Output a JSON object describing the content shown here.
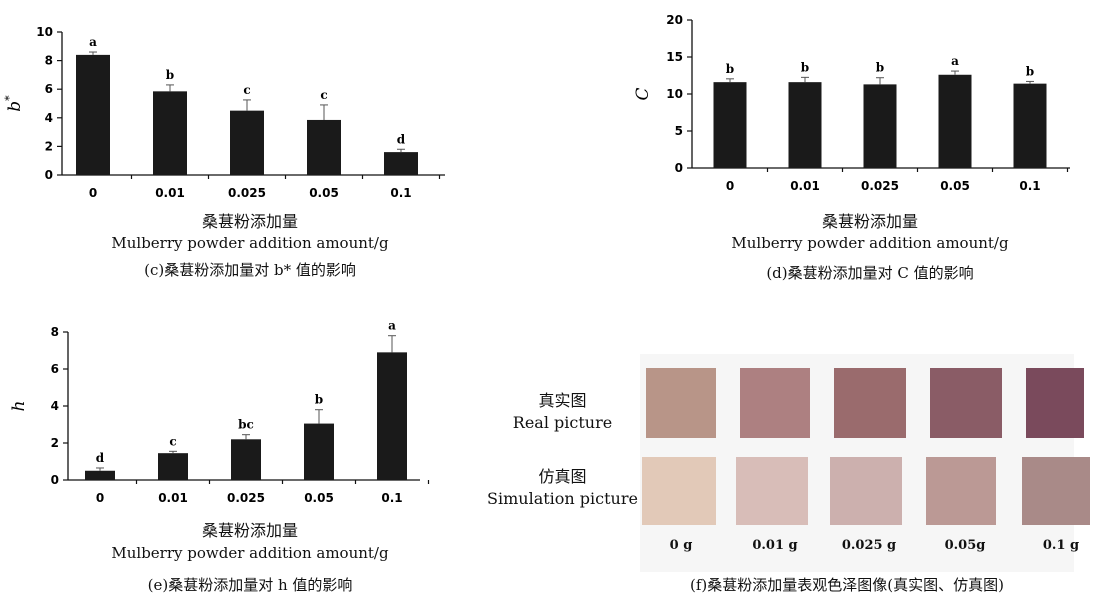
{
  "chart_data": [
    {
      "id": "c",
      "type": "bar",
      "ylabel": "b*",
      "ylim": [
        0,
        10
      ],
      "yticks": [
        0,
        2,
        4,
        6,
        8,
        10
      ],
      "categories": [
        "0",
        "0.01",
        "0.025",
        "0.05",
        "0.1"
      ],
      "values": [
        8.4,
        5.85,
        4.5,
        3.85,
        1.6
      ],
      "errors": [
        0.2,
        0.45,
        0.75,
        1.05,
        0.2
      ],
      "labels": [
        "a",
        "b",
        "c",
        "c",
        "d"
      ],
      "xlabel_cn": "桑葚粉添加量",
      "xlabel_en": "Mulberry powder addition amount/g",
      "caption": "(c)桑葚粉添加量对 b* 值的影响"
    },
    {
      "id": "d",
      "type": "bar",
      "ylabel": "C",
      "ylim": [
        0,
        20
      ],
      "yticks": [
        0,
        5,
        10,
        15,
        20
      ],
      "categories": [
        "0",
        "0.01",
        "0.025",
        "0.05",
        "0.1"
      ],
      "values": [
        11.6,
        11.6,
        11.3,
        12.6,
        11.4
      ],
      "errors": [
        0.45,
        0.65,
        0.9,
        0.5,
        0.3
      ],
      "labels": [
        "b",
        "b",
        "b",
        "a",
        "b"
      ],
      "xlabel_cn": "桑葚粉添加量",
      "xlabel_en": "Mulberry powder addition amount/g",
      "caption": "(d)桑葚粉添加量对 C 值的影响"
    },
    {
      "id": "e",
      "type": "bar",
      "ylabel": "h",
      "ylim": [
        0,
        8
      ],
      "yticks": [
        0,
        2,
        4,
        6,
        8
      ],
      "categories": [
        "0",
        "0.01",
        "0.025",
        "0.05",
        "0.1"
      ],
      "values": [
        0.5,
        1.45,
        2.2,
        3.05,
        6.9
      ],
      "errors": [
        0.15,
        0.1,
        0.25,
        0.75,
        0.9
      ],
      "labels": [
        "d",
        "c",
        "bc",
        "b",
        "a"
      ],
      "xlabel_cn": "桑葚粉添加量",
      "xlabel_en": "Mulberry powder addition amount/g",
      "caption": "(e)桑葚粉添加量对 h 值的影响"
    }
  ],
  "figure_f": {
    "row1_cn": "真实图",
    "row1_en": "Real picture",
    "row2_cn": "仿真图",
    "row2_en": "Simulation picture",
    "amounts": [
      "0 g",
      "0.01 g",
      "0.025 g",
      "0.05g",
      "0.1 g"
    ],
    "real_colors": [
      "#b89588",
      "#ad8081",
      "#9a6b6d",
      "#8a5c66",
      "#7a4a5c"
    ],
    "sim_colors": [
      "#e2c9b8",
      "#d8bdb8",
      "#ccb0ae",
      "#bb9995",
      "#a98a88"
    ],
    "caption": "(f)桑葚粉添加量表观色泽图像(真实图、仿真图)"
  }
}
